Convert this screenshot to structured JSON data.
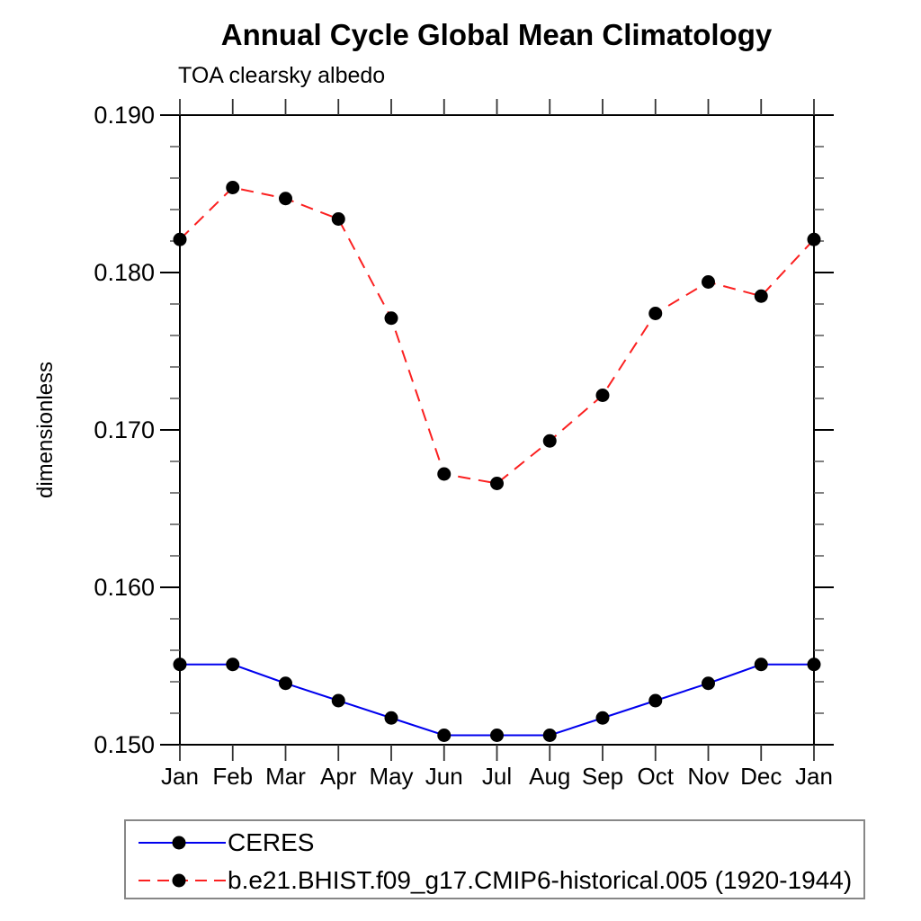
{
  "chart_data": {
    "type": "line",
    "title": "Annual Cycle Global Mean Climatology",
    "subtitle": "TOA clearsky albedo",
    "ylabel": "dimensionless",
    "xlabel": "",
    "categories": [
      "Jan",
      "Feb",
      "Mar",
      "Apr",
      "May",
      "Jun",
      "Jul",
      "Aug",
      "Sep",
      "Oct",
      "Nov",
      "Dec",
      "Jan"
    ],
    "ylim": [
      0.15,
      0.19
    ],
    "ytick_labels": [
      "0.150",
      "0.160",
      "0.170",
      "0.180",
      "0.190"
    ],
    "ytick_minor_step": 0.002,
    "grid": false,
    "legend_position": "bottom-left-box",
    "marker": "filled-black-circle",
    "marker_color": "#000000",
    "series": [
      {
        "name": "CERES",
        "color": "#0000ee",
        "style": "solid",
        "values": [
          0.1551,
          0.1551,
          0.1539,
          0.1528,
          0.1517,
          0.1506,
          0.1506,
          0.1506,
          0.1517,
          0.1528,
          0.1539,
          0.1551,
          0.1551
        ]
      },
      {
        "name": "b.e21.BHIST.f09_g17.CMIP6-historical.005 (1920-1944)",
        "color": "#fb2020",
        "style": "dashed",
        "values": [
          0.1821,
          0.1854,
          0.1847,
          0.1834,
          0.1771,
          0.1672,
          0.1666,
          0.1693,
          0.1722,
          0.1774,
          0.1794,
          0.1785,
          0.1821
        ]
      }
    ]
  }
}
